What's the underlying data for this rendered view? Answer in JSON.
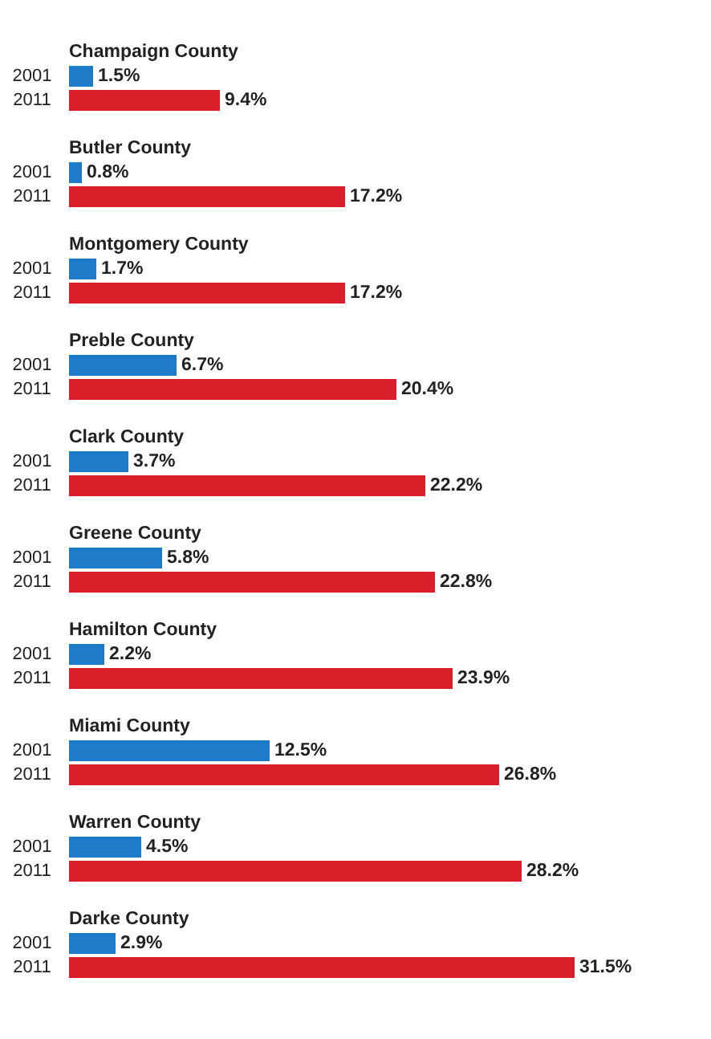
{
  "chart_data": {
    "type": "bar",
    "orientation": "horizontal",
    "categories": [
      "Champaign County",
      "Butler County",
      "Montgomery County",
      "Preble County",
      "Clark County",
      "Greene County",
      "Hamilton County",
      "Miami County",
      "Warren County",
      "Darke County"
    ],
    "series": [
      {
        "name": "2001",
        "color": "#1f7bc9",
        "values": [
          1.5,
          0.8,
          1.7,
          6.7,
          3.7,
          5.8,
          2.2,
          12.5,
          4.5,
          2.9
        ],
        "value_labels": [
          "1.5%",
          "0.8%",
          "1.7%",
          "6.7%",
          "3.7%",
          "5.8%",
          "2.2%",
          "12.5%",
          "4.5%",
          "2.9%"
        ]
      },
      {
        "name": "2011",
        "color": "#d9202a",
        "values": [
          9.4,
          17.2,
          17.2,
          20.4,
          22.2,
          22.8,
          23.9,
          26.8,
          28.2,
          31.5
        ],
        "value_labels": [
          "9.4%",
          "17.2%",
          "17.2%",
          "20.4%",
          "22.2%",
          "22.8%",
          "23.9%",
          "26.8%",
          "28.2%",
          "31.5%"
        ]
      }
    ],
    "tick_labels": "y",
    "legend": false,
    "grid": false
  }
}
